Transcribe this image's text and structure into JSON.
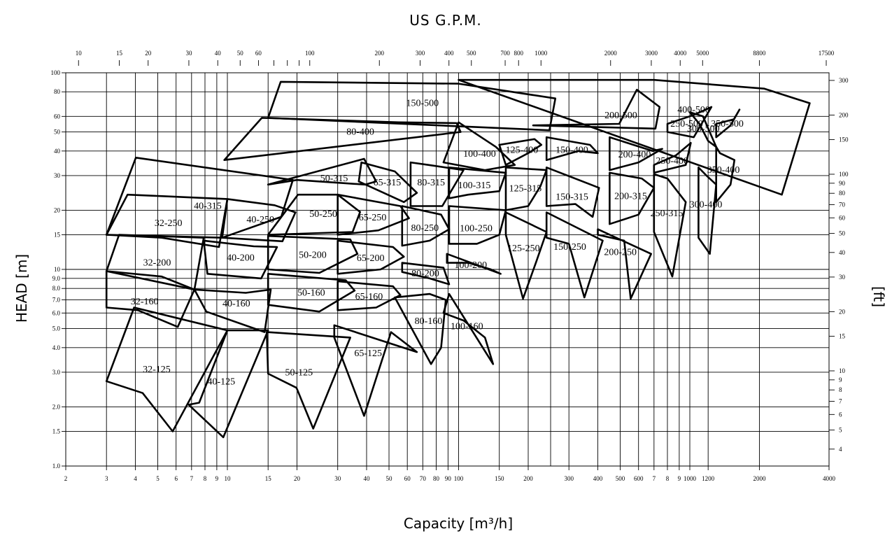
{
  "chart_data": {
    "type": "area",
    "title": "US G.P.M.",
    "xlabel": "Capacity [m³/h]",
    "ylabel": "HEAD [m]",
    "y2label": "[ft]",
    "x_scale": "log",
    "y_scale": "log",
    "xlim": [
      2,
      4000
    ],
    "ylim": [
      1,
      100
    ],
    "grid": true,
    "x_ticks": [
      "2",
      "3",
      "4",
      "5",
      "6",
      "7",
      "8",
      "9",
      "10",
      "15",
      "20",
      "30",
      "40",
      "50",
      "60",
      "70",
      "80",
      "90",
      "100",
      "150",
      "200",
      "300",
      "400",
      "500",
      "600",
      "7",
      "8",
      "9",
      "1000",
      "1200",
      "2000",
      "4000"
    ],
    "x_grid_values": [
      3,
      4,
      5,
      6,
      7,
      8,
      9,
      10,
      15,
      20,
      30,
      40,
      50,
      60,
      70,
      80,
      90,
      100,
      150,
      200,
      250,
      300,
      400,
      500,
      600,
      700,
      800,
      900,
      1000,
      1200,
      2000
    ],
    "y_ticks": [
      "1.0",
      "1.5",
      "2.0",
      "3.0",
      "4.0",
      "5.0",
      "6.0",
      "7.0",
      "8.0",
      "9.0",
      "10",
      "15",
      "20",
      "30",
      "40",
      "50",
      "60",
      "80",
      "100"
    ],
    "top_ticks": [
      "10",
      "15",
      "20",
      "30",
      "40",
      "50",
      "60",
      "100",
      "200",
      "300",
      "400",
      "500",
      "700",
      "800",
      "1000",
      "2000",
      "3000",
      "4000",
      "5000",
      "8800",
      "17500"
    ],
    "right_ticks": [
      "4",
      "5",
      "6",
      "7",
      "8",
      "9",
      "10",
      "15",
      "20",
      "30",
      "40",
      "50",
      "60",
      "70",
      "80",
      "90",
      "100",
      "150",
      "200",
      "300"
    ],
    "regions": [
      {
        "label": "32-125",
        "pts": [
          [
            3,
            2.7
          ],
          [
            4.3,
            2.35
          ],
          [
            5.8,
            1.5
          ],
          [
            10,
            4.9
          ],
          [
            3.95,
            6.4
          ]
        ]
      },
      {
        "label": "32-160",
        "pts": [
          [
            3,
            6.4
          ],
          [
            4.1,
            6.2
          ],
          [
            6.1,
            5.1
          ],
          [
            7.2,
            7.9
          ],
          [
            3,
            9.8
          ]
        ]
      },
      {
        "label": "32-200",
        "pts": [
          [
            3,
            9.8
          ],
          [
            5.2,
            9.2
          ],
          [
            7.2,
            7.9
          ],
          [
            7.9,
            14.5
          ],
          [
            3.4,
            15
          ]
        ]
      },
      {
        "label": "32-250",
        "pts": [
          [
            3,
            15
          ],
          [
            5.2,
            14.5
          ],
          [
            9.2,
            13
          ],
          [
            10,
            22.8
          ],
          [
            3.7,
            24
          ]
        ]
      },
      {
        "label": "40-315",
        "pts": [
          [
            3,
            15
          ],
          [
            9.5,
            14.5
          ],
          [
            17.1,
            18.5
          ],
          [
            19.2,
            28.5
          ],
          [
            4.02,
            37
          ]
        ]
      },
      {
        "label": "40-125",
        "pts": [
          [
            6.8,
            2.05
          ],
          [
            9.6,
            1.4
          ],
          [
            15,
            4.9
          ],
          [
            10,
            4.9
          ],
          [
            7.55,
            2.1
          ]
        ]
      },
      {
        "label": "40-160",
        "pts": [
          [
            7.2,
            7.9
          ],
          [
            12,
            7.6
          ],
          [
            15.4,
            7.9
          ],
          [
            14.5,
            4.8
          ],
          [
            8.1,
            6.1
          ]
        ]
      },
      {
        "label": "40-200",
        "pts": [
          [
            7.9,
            14
          ],
          [
            13,
            13.1
          ],
          [
            16.4,
            13
          ],
          [
            14,
            9
          ],
          [
            8.2,
            9.5
          ]
        ]
      },
      {
        "label": "40-250",
        "pts": [
          [
            10,
            22.8
          ],
          [
            16,
            21.2
          ],
          [
            19.7,
            19.5
          ],
          [
            17.3,
            13.9
          ],
          [
            9.5,
            14.5
          ]
        ]
      },
      {
        "label": "50-125",
        "pts": [
          [
            15,
            2.95
          ],
          [
            19.9,
            2.5
          ],
          [
            23.5,
            1.55
          ],
          [
            34,
            4.5
          ],
          [
            14.8,
            4.8
          ]
        ]
      },
      {
        "label": "50-160",
        "pts": [
          [
            15,
            6.6
          ],
          [
            25,
            6.1
          ],
          [
            35.5,
            7.8
          ],
          [
            32.5,
            8.8
          ],
          [
            15,
            9.5
          ]
        ]
      },
      {
        "label": "50-200",
        "pts": [
          [
            15,
            10
          ],
          [
            25,
            9.6
          ],
          [
            36.5,
            12
          ],
          [
            34,
            14.2
          ],
          [
            15,
            14.8
          ]
        ]
      },
      {
        "label": "50-250",
        "pts": [
          [
            15,
            15
          ],
          [
            20.2,
            24
          ],
          [
            30,
            24
          ],
          [
            37.5,
            19.6
          ],
          [
            34.8,
            15.5
          ]
        ]
      },
      {
        "label": "50-315",
        "pts": [
          [
            15,
            27
          ],
          [
            20,
            28.5
          ],
          [
            39.5,
            27
          ],
          [
            44,
            28
          ],
          [
            39,
            36.5
          ]
        ]
      },
      {
        "label": "80-400",
        "pts": [
          [
            9.7,
            36
          ],
          [
            14.1,
            59
          ],
          [
            55,
            56
          ],
          [
            98,
            55.5
          ],
          [
            102,
            50
          ]
        ]
      },
      {
        "label": "150-500",
        "pts": [
          [
            15,
            59
          ],
          [
            17,
            90
          ],
          [
            100,
            88
          ],
          [
            262,
            74
          ],
          [
            247,
            51
          ]
        ]
      },
      {
        "label": "65-125",
        "pts": [
          [
            29,
            4.5
          ],
          [
            39,
            1.8
          ],
          [
            51,
            4.8
          ],
          [
            66,
            3.8
          ],
          [
            29,
            5.2
          ]
        ]
      },
      {
        "label": "65-160",
        "pts": [
          [
            30,
            6.2
          ],
          [
            44,
            6.4
          ],
          [
            56,
            7.4
          ],
          [
            52,
            8.2
          ],
          [
            30,
            8.7
          ]
        ]
      },
      {
        "label": "65-200",
        "pts": [
          [
            30,
            9.5
          ],
          [
            46,
            10
          ],
          [
            58,
            11.6
          ],
          [
            52,
            13
          ],
          [
            30,
            14
          ]
        ]
      },
      {
        "label": "65-250",
        "pts": [
          [
            30,
            15
          ],
          [
            45,
            15.8
          ],
          [
            61,
            18.2
          ],
          [
            56,
            21
          ],
          [
            30,
            24
          ]
        ]
      },
      {
        "label": "65-315",
        "pts": [
          [
            38,
            35
          ],
          [
            53,
            31.5
          ],
          [
            66,
            24.5
          ],
          [
            58,
            22
          ],
          [
            37,
            28
          ]
        ]
      },
      {
        "label": "80-160",
        "pts": [
          [
            53,
            7.2
          ],
          [
            75,
            7.5
          ],
          [
            88,
            7
          ],
          [
            84,
            4
          ],
          [
            76,
            3.3
          ]
        ]
      },
      {
        "label": "80-200",
        "pts": [
          [
            57,
            9.7
          ],
          [
            75,
            9
          ],
          [
            91,
            8.4
          ],
          [
            86,
            10.2
          ],
          [
            57,
            10.8
          ]
        ]
      },
      {
        "label": "80-250",
        "pts": [
          [
            57,
            13.2
          ],
          [
            75,
            14
          ],
          [
            91,
            16
          ],
          [
            84,
            19
          ],
          [
            57,
            21
          ]
        ]
      },
      {
        "label": "80-315",
        "pts": [
          [
            62,
            21
          ],
          [
            85,
            21
          ],
          [
            105,
            32
          ],
          [
            74,
            34
          ],
          [
            62,
            35
          ]
        ]
      },
      {
        "label": "100-160",
        "pts": [
          [
            86,
            6
          ],
          [
            105,
            5.5
          ],
          [
            130,
            4.5
          ],
          [
            141,
            3.3
          ],
          [
            91,
            7.5
          ]
        ]
      },
      {
        "label": "100-200",
        "pts": [
          [
            89,
            10.8
          ],
          [
            110,
            10.8
          ],
          [
            138,
            10
          ],
          [
            152,
            9.5
          ],
          [
            89,
            12
          ]
        ]
      },
      {
        "label": "100-250",
        "pts": [
          [
            91,
            13.5
          ],
          [
            120,
            13.5
          ],
          [
            150,
            15
          ],
          [
            160,
            20
          ],
          [
            91,
            21
          ]
        ]
      },
      {
        "label": "100-315",
        "pts": [
          [
            91,
            23
          ],
          [
            110,
            24
          ],
          [
            150,
            25
          ],
          [
            160,
            31
          ],
          [
            91,
            33
          ]
        ]
      },
      {
        "label": "100-400",
        "pts": [
          [
            86,
            35
          ],
          [
            100,
            56
          ],
          [
            145,
            42
          ],
          [
            175,
            34
          ],
          [
            130,
            32
          ]
        ]
      },
      {
        "label": "125-250",
        "pts": [
          [
            160,
            15
          ],
          [
            190,
            7.1
          ],
          [
            217,
            11
          ],
          [
            240,
            15.5
          ],
          [
            160,
            19.5
          ]
        ]
      },
      {
        "label": "125-315",
        "pts": [
          [
            160,
            20
          ],
          [
            200,
            21
          ],
          [
            226,
            26.5
          ],
          [
            240,
            32
          ],
          [
            160,
            33
          ]
        ]
      },
      {
        "label": "125-400",
        "pts": [
          [
            160,
            34
          ],
          [
            200,
            39
          ],
          [
            228,
            43
          ],
          [
            213,
            46
          ],
          [
            150,
            43
          ]
        ]
      },
      {
        "label": "150-250",
        "pts": [
          [
            240,
            14.5
          ],
          [
            300,
            13.5
          ],
          [
            350,
            7.2
          ],
          [
            420,
            14
          ],
          [
            240,
            19.5
          ]
        ]
      },
      {
        "label": "150-315",
        "pts": [
          [
            240,
            21
          ],
          [
            320,
            21.5
          ],
          [
            380,
            18.5
          ],
          [
            405,
            26
          ],
          [
            240,
            33
          ]
        ]
      },
      {
        "label": "150-400",
        "pts": [
          [
            240,
            36
          ],
          [
            330,
            40
          ],
          [
            400,
            39
          ],
          [
            370,
            43
          ],
          [
            240,
            47
          ]
        ]
      },
      {
        "label": "200-250",
        "pts": [
          [
            400,
            15
          ],
          [
            520,
            14
          ],
          [
            555,
            7.1
          ],
          [
            680,
            12
          ],
          [
            400,
            16
          ]
        ]
      },
      {
        "label": "200-315",
        "pts": [
          [
            450,
            17
          ],
          [
            600,
            19
          ],
          [
            700,
            26
          ],
          [
            620,
            29
          ],
          [
            450,
            31
          ]
        ]
      },
      {
        "label": "200-400",
        "pts": [
          [
            450,
            32
          ],
          [
            600,
            35
          ],
          [
            760,
            41
          ],
          [
            690,
            40
          ],
          [
            450,
            47
          ]
        ]
      },
      {
        "label": "200-500",
        "pts": [
          [
            210,
            54
          ],
          [
            495,
            55
          ],
          [
            590,
            82
          ],
          [
            740,
            67
          ],
          [
            710,
            52
          ]
        ]
      },
      {
        "label": "250-315",
        "pts": [
          [
            700,
            15.5
          ],
          [
            840,
            9.2
          ],
          [
            960,
            22
          ],
          [
            800,
            29
          ],
          [
            700,
            30.5
          ]
        ]
      },
      {
        "label": "250-400",
        "pts": [
          [
            700,
            34
          ],
          [
            870,
            38
          ],
          [
            1010,
            44
          ],
          [
            960,
            34
          ],
          [
            700,
            31
          ]
        ]
      },
      {
        "label": "250-500",
        "pts": [
          [
            800,
            55
          ],
          [
            1040,
            61
          ],
          [
            1240,
            67
          ],
          [
            1040,
            47
          ],
          [
            800,
            50
          ]
        ]
      },
      {
        "label": "300-400",
        "pts": [
          [
            1090,
            14.5
          ],
          [
            1220,
            12
          ],
          [
            1300,
            27
          ],
          [
            1180,
            30
          ],
          [
            1090,
            33
          ]
        ]
      },
      {
        "label": "300-500",
        "pts": [
          [
            1000,
            63
          ],
          [
            1140,
            60
          ],
          [
            1300,
            42
          ],
          [
            1200,
            45
          ],
          [
            1100,
            55
          ]
        ]
      },
      {
        "label": "350-400",
        "pts": [
          [
            1300,
            22
          ],
          [
            1500,
            27
          ],
          [
            1560,
            36
          ],
          [
            1350,
            39
          ],
          [
            1300,
            42
          ]
        ]
      },
      {
        "label": "350-500",
        "pts": [
          [
            1300,
            47
          ],
          [
            1500,
            54
          ],
          [
            1640,
            65
          ],
          [
            1550,
            58
          ],
          [
            1300,
            55
          ]
        ]
      },
      {
        "label": "400-500",
        "pts": [
          [
            100,
            92
          ],
          [
            700,
            92
          ],
          [
            2100,
            83
          ],
          [
            3300,
            70
          ],
          [
            2500,
            24
          ]
        ]
      }
    ]
  }
}
